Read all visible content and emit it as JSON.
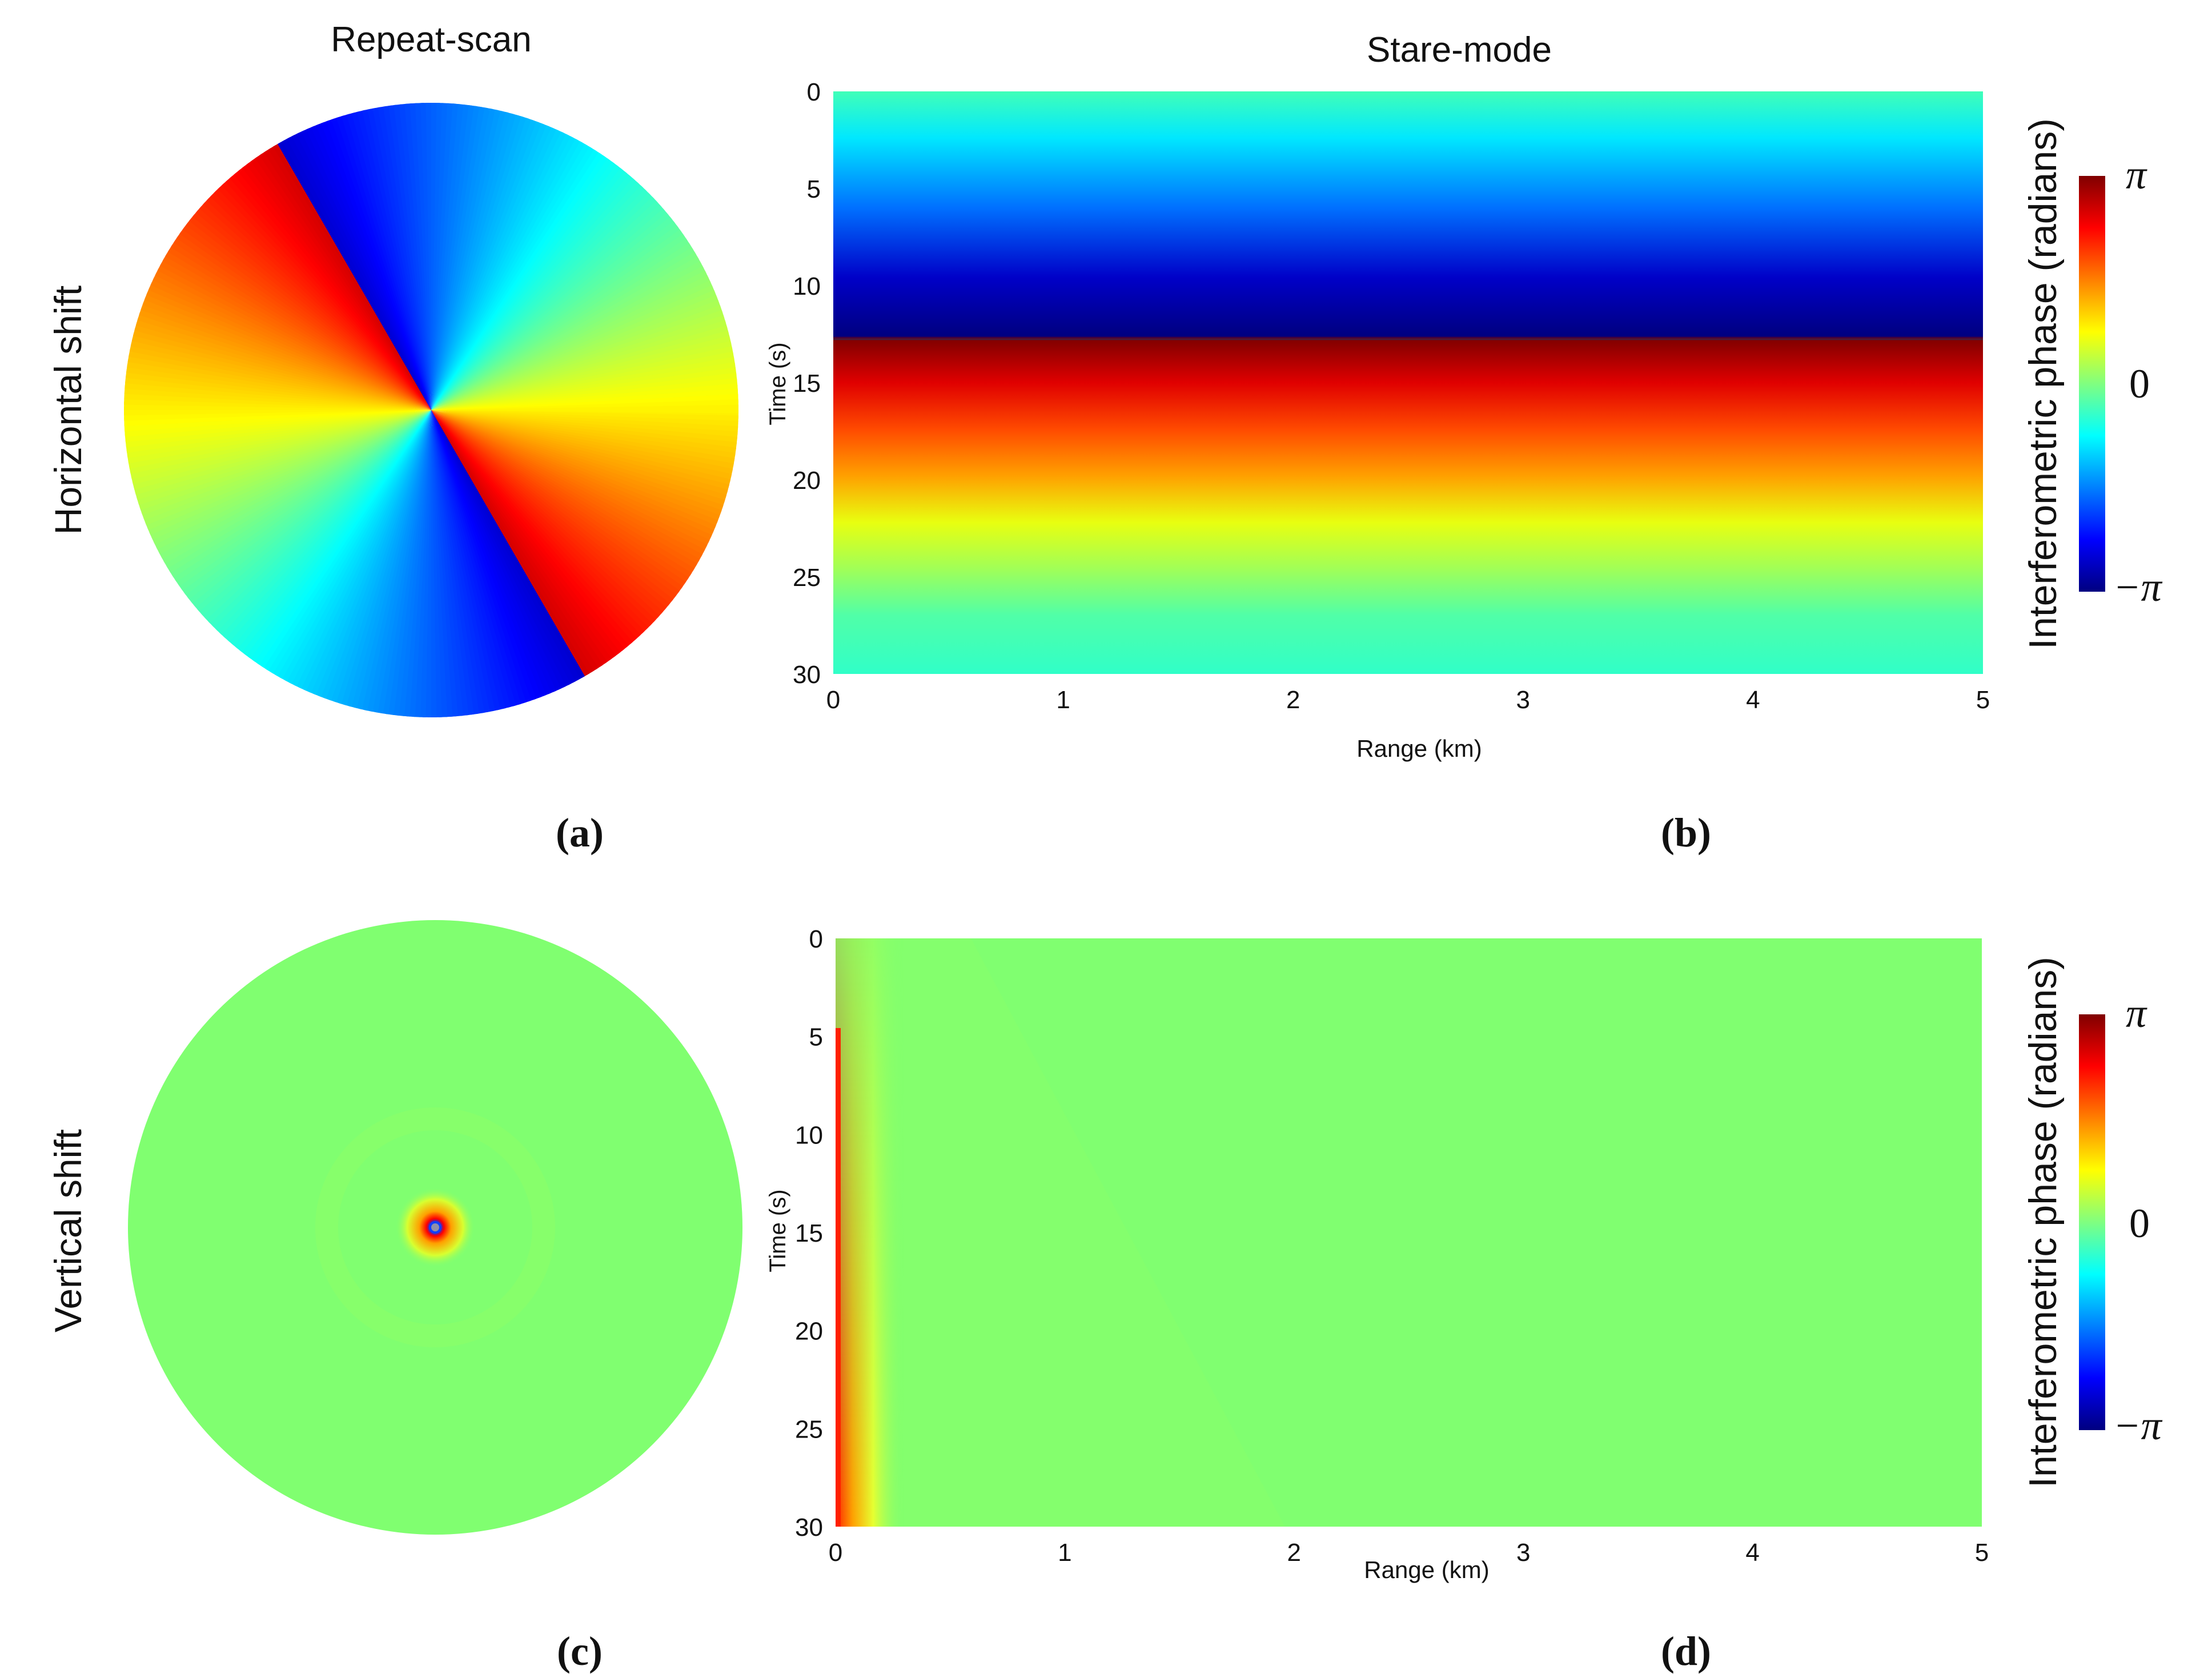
{
  "column_titles": {
    "left": "Repeat-scan",
    "right": "Stare-mode"
  },
  "row_labels": {
    "top": "Horizontal shift",
    "bottom": "Vertical shift"
  },
  "panel_labels": [
    "(a)",
    "(b)",
    "(c)",
    "(d)"
  ],
  "colorbar": {
    "label": "Interferometric phase (radians)",
    "ticks": [
      "π",
      "0",
      "−π"
    ],
    "colormap": "jet"
  },
  "chart_data": [
    {
      "id": "a",
      "type": "heatmap",
      "title": "Repeat-scan",
      "row_label": "Horizontal shift",
      "shape": "disk",
      "description_pattern": "angular",
      "wraps": 2,
      "phase_range": [
        "-π",
        "π"
      ]
    },
    {
      "id": "b",
      "type": "heatmap",
      "title": "Stare-mode",
      "xlabel": "Range (km)",
      "ylabel": "Time (s)",
      "xlim": [
        0,
        5
      ],
      "ylim": [
        30,
        0
      ],
      "xticks": [
        "0",
        "1",
        "2",
        "3",
        "4",
        "5"
      ],
      "yticks": [
        "0",
        "5",
        "10",
        "15",
        "20",
        "25",
        "30"
      ],
      "time_profile": {
        "time": [
          0,
          5,
          10,
          12.8,
          15,
          20,
          25,
          30
        ],
        "phase": [
          0,
          -1.4,
          -2.9,
          -3.14,
          2.6,
          1.3,
          0.2,
          0
        ]
      }
    },
    {
      "id": "c",
      "type": "heatmap",
      "row_label": "Vertical shift",
      "shape": "disk",
      "background_phase": 0.45,
      "center_hotspot": true
    },
    {
      "id": "d",
      "type": "heatmap",
      "xlabel": "Range (km)",
      "ylabel": "Time (s)",
      "xlim": [
        0,
        5
      ],
      "ylim": [
        30,
        0
      ],
      "xticks": [
        "0",
        "1",
        "2",
        "3",
        "4",
        "5"
      ],
      "yticks": [
        "0",
        "5",
        "10",
        "15",
        "20",
        "25",
        "30"
      ],
      "background_phase": 0.45,
      "edge_feature_range_km": [
        0,
        0.05
      ]
    }
  ],
  "colors": {
    "background": "#ffffff",
    "uniform_green": "#80ff70",
    "text": "#111111"
  }
}
